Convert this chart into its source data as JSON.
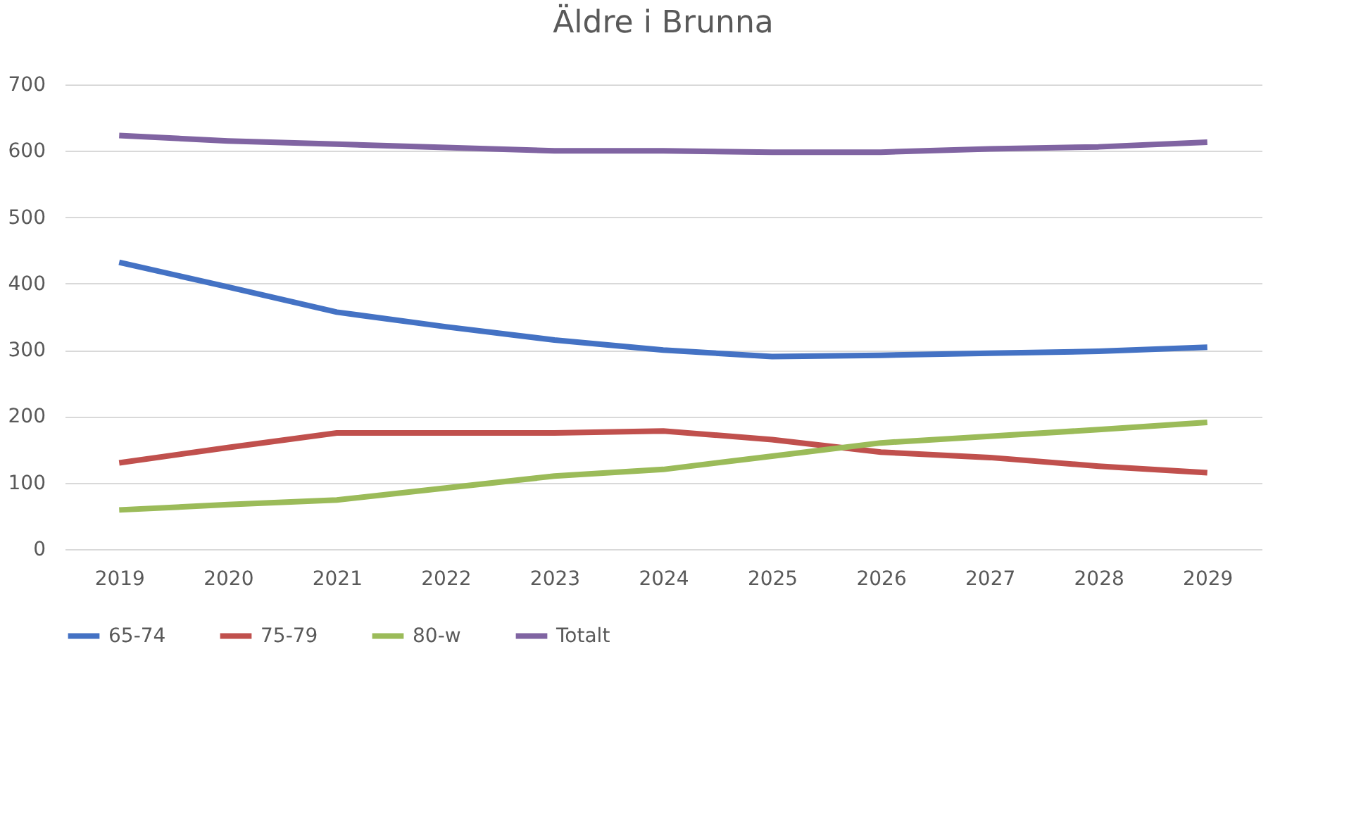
{
  "chart_data": {
    "type": "line",
    "title": "Äldre i Brunna",
    "categories": [
      "2019",
      "2020",
      "2021",
      "2022",
      "2023",
      "2024",
      "2025",
      "2026",
      "2027",
      "2028",
      "2029"
    ],
    "series": [
      {
        "name": "65-74",
        "color": "#4472c4",
        "values": [
          432,
          395,
          357,
          335,
          315,
          300,
          290,
          292,
          295,
          298,
          304
        ]
      },
      {
        "name": "75-79",
        "color": "#c0504d",
        "values": [
          130,
          153,
          175,
          175,
          175,
          178,
          165,
          146,
          138,
          125,
          115
        ]
      },
      {
        "name": "80-w",
        "color": "#9bbb59",
        "values": [
          59,
          67,
          74,
          92,
          110,
          120,
          140,
          160,
          170,
          180,
          191
        ]
      },
      {
        "name": "Totalt",
        "color": "#8064a2",
        "values": [
          623,
          615,
          610,
          605,
          600,
          600,
          598,
          598,
          603,
          606,
          613
        ]
      }
    ],
    "ylim": [
      0,
      700
    ],
    "yticks": [
      0,
      100,
      200,
      300,
      400,
      500,
      600,
      700
    ],
    "grid": "y",
    "legend": "bottom",
    "marker": "none",
    "line_style": "solid"
  }
}
